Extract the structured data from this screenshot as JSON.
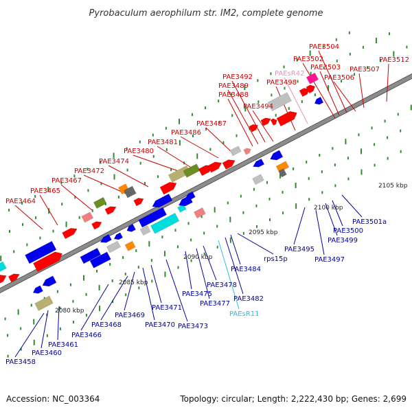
{
  "title": "Pyrobaculum aerophilum str. IM2, complete genome",
  "footer": {
    "accession": "Accession: NC_003364",
    "summary": "Topology: circular; Length: 2,222,430 bp; Genes: 2,699"
  },
  "colors": {
    "axis": "#8c8c8c",
    "tick": "#2e8b2e",
    "top_label": "#cc0000",
    "bottom_label": "#000099",
    "rna_top_label": "#e890c0",
    "rna_bottom_label": "#33bbdd"
  },
  "kbp_marks": [
    "2080 kbp",
    "2085 kbp",
    "2090 kbp",
    "2095 kbp",
    "2100 kbp",
    "2105 kbp"
  ],
  "top_labels": [
    "PAE3464",
    "PAE3465",
    "PAE3467",
    "PAE3472",
    "PAE3474",
    "PAE3480",
    "PAE3481",
    "PAE3486",
    "PAE3487",
    "PAE3488",
    "PAE3489",
    "PAE3492",
    "PAE3494",
    "PAE3498",
    "PAEsR42",
    "PAE3502",
    "PAE3503",
    "PAE3504",
    "PAE3506",
    "PAE3507",
    "PAE3512"
  ],
  "bottom_labels": [
    "PAE3458",
    "PAE3460",
    "PAE3461",
    "PAE3466",
    "PAE3468",
    "PAE3469",
    "PAE3470",
    "PAE3471",
    "PAE3473",
    "PAE3475",
    "PAE3477",
    "PAE3478",
    "PAEsR11",
    "PAE3482",
    "PAE3484",
    "rps15p",
    "PAE3495",
    "PAE3497",
    "PAE3499",
    "PAE3500",
    "PAE3501a"
  ]
}
